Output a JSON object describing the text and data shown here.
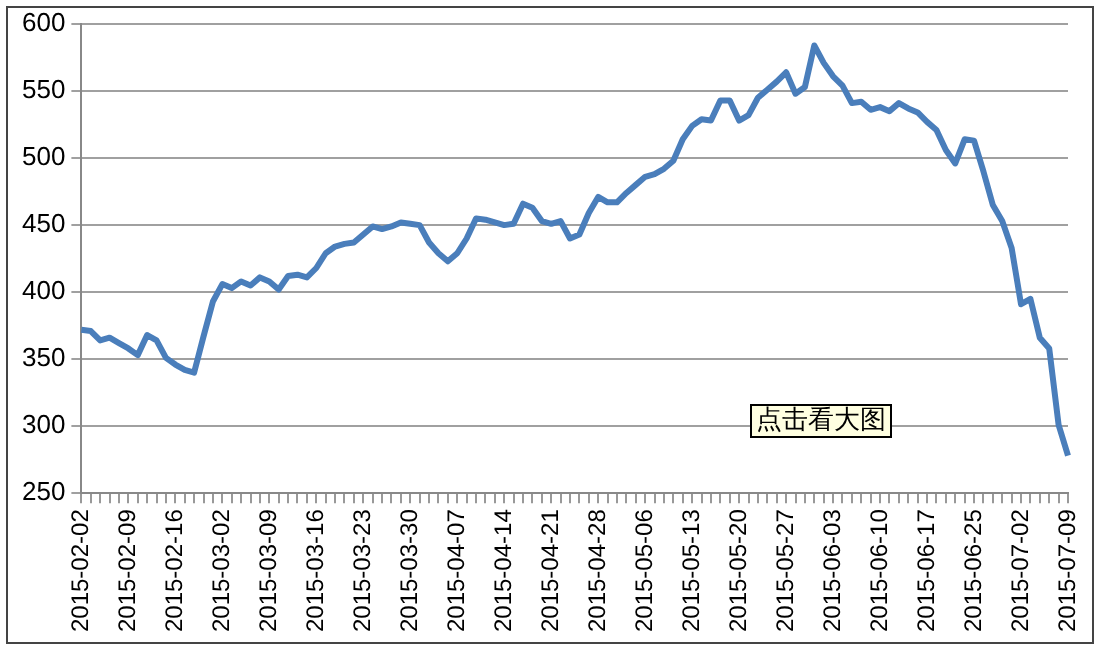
{
  "chart_data": {
    "type": "line",
    "categories": [
      "2015-02-02",
      null,
      null,
      null,
      null,
      "2015-02-09",
      null,
      null,
      null,
      null,
      "2015-02-16",
      null,
      null,
      null,
      null,
      "2015-03-02",
      null,
      null,
      null,
      null,
      "2015-03-09",
      null,
      null,
      null,
      null,
      "2015-03-16",
      null,
      null,
      null,
      null,
      "2015-03-23",
      null,
      null,
      null,
      null,
      "2015-03-30",
      null,
      null,
      null,
      null,
      "2015-04-07",
      null,
      null,
      null,
      null,
      "2015-04-14",
      null,
      null,
      null,
      null,
      "2015-04-21",
      null,
      null,
      null,
      null,
      "2015-04-28",
      null,
      null,
      null,
      null,
      "2015-05-06",
      null,
      null,
      null,
      null,
      "2015-05-13",
      null,
      null,
      null,
      null,
      "2015-05-20",
      null,
      null,
      null,
      null,
      "2015-05-27",
      null,
      null,
      null,
      null,
      "2015-06-03",
      null,
      null,
      null,
      null,
      "2015-06-10",
      null,
      null,
      null,
      null,
      "2015-06-17",
      null,
      null,
      null,
      null,
      "2015-06-25",
      null,
      null,
      null,
      null,
      "2015-07-02",
      null,
      null,
      null,
      null,
      "2015-07-09"
    ],
    "series": [
      {
        "color": "#4a7ebb",
        "values": [
          372,
          371,
          364,
          366,
          362,
          358,
          353,
          368,
          364,
          351,
          346,
          342,
          340,
          367,
          393,
          406,
          403,
          408,
          405,
          411,
          408,
          402,
          412,
          413,
          411,
          418,
          429,
          434,
          436,
          437,
          443,
          449,
          447,
          449,
          452,
          451,
          450,
          437,
          429,
          423,
          429,
          440,
          455,
          454,
          452,
          450,
          451,
          466,
          463,
          453,
          451,
          453,
          440,
          443,
          459,
          471,
          467,
          467,
          474,
          480,
          486,
          488,
          492,
          498,
          514,
          524,
          529,
          528,
          543,
          543,
          528,
          532,
          545,
          551,
          557,
          564,
          548,
          553,
          584,
          571,
          561,
          554,
          541,
          542,
          536,
          538,
          535,
          541,
          537,
          534,
          527,
          521,
          506,
          496,
          514,
          513,
          490,
          465,
          453,
          433,
          391,
          395,
          366,
          358,
          301,
          278
        ]
      }
    ],
    "ylim": [
      250,
      600
    ],
    "yticks": [
      250,
      300,
      350,
      400,
      450,
      500,
      550,
      600
    ],
    "grid": "y",
    "legend": false,
    "marker": "none",
    "line_style": "solid",
    "annotations": [
      "点击看大图"
    ]
  }
}
